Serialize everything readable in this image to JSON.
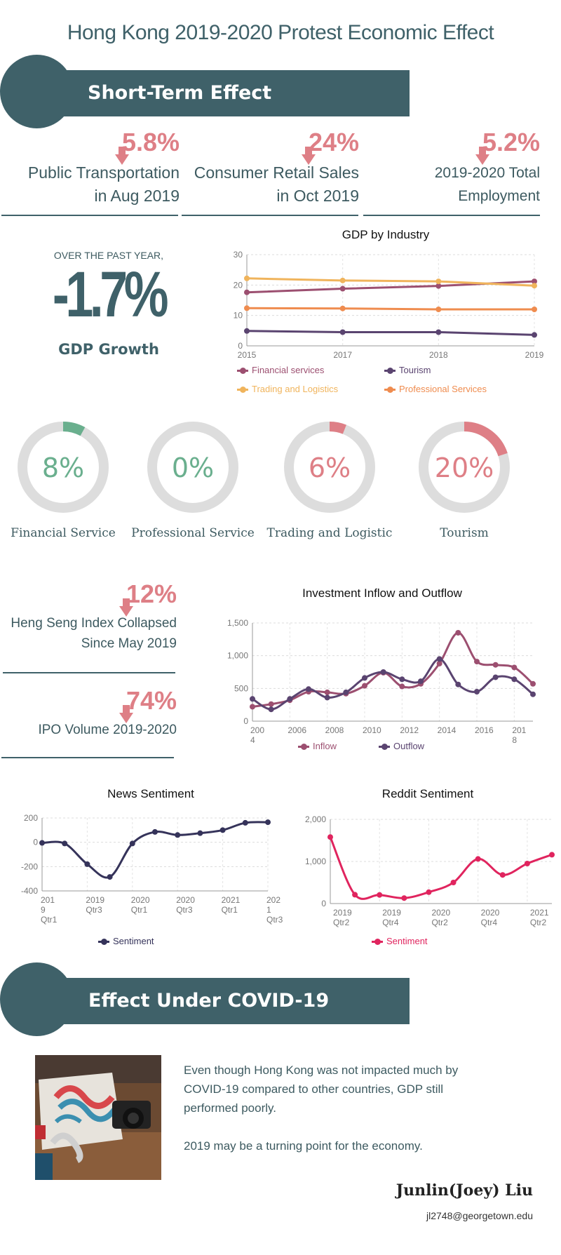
{
  "title": "Hong Kong 2019-2020 Protest Economic Effect",
  "banner_short": "Short-Term Effect",
  "banner_covid": "Effect Under COVID-19",
  "top_stats": [
    {
      "pct": "5.8%",
      "line1": "Public Transportation",
      "line2": "in Aug 2019"
    },
    {
      "pct": "24%",
      "line1": "Consumer Retail Sales",
      "line2": "in Oct 2019"
    },
    {
      "pct": "5.2%",
      "line1": "2019-2020 Total",
      "line2": "Employment"
    }
  ],
  "gdp_block": {
    "over": "OVER THE PAST YEAR,",
    "value": "-1.7%",
    "label": "GDP Growth"
  },
  "donuts": [
    {
      "value": 8,
      "text": "8%",
      "label": "Financial Service",
      "color": "#6aaf8e"
    },
    {
      "value": 0,
      "text": "0%",
      "label": "Professional Service",
      "color": "#6aaf8e"
    },
    {
      "value": 6,
      "text": "6%",
      "label": "Trading and Logistic",
      "color": "#de7f86"
    },
    {
      "value": 20,
      "text": "20%",
      "label": "Tourism",
      "color": "#de7f86"
    }
  ],
  "mid_stats": [
    {
      "pct": "12%",
      "line1": "Heng Seng Index Collapsed",
      "line2": "Since May 2019"
    },
    {
      "pct": "74%",
      "line1": "IPO Volume 2019-2020",
      "line2": ""
    }
  ],
  "covid_text": {
    "p1": "Even though Hong Kong was not impacted much by COVID-19 compared to other countries, GDP still performed poorly.",
    "p2": "2019 may be a turning point for the economy."
  },
  "author": {
    "name": "Junlin(Joey) Liu",
    "email": "jl2748@georgetown.edu"
  },
  "colors": {
    "accent": "#3f6169",
    "negative": "#de7f86",
    "positive": "#6aaf8e",
    "ring": "#dddddd"
  },
  "chart_data": [
    {
      "type": "line",
      "title": "GDP by Industry",
      "categories": [
        "2015",
        "2017",
        "2018",
        "2019"
      ],
      "ylim": [
        0,
        30
      ],
      "yticks": [
        "0",
        "10",
        "20",
        "30"
      ],
      "grid": true,
      "legend": "bottom",
      "series": [
        {
          "name": "Financial services",
          "color": "#9c4f70",
          "values": [
            17.6,
            18.8,
            19.7,
            21.2
          ]
        },
        {
          "name": "Tourism",
          "color": "#5a4470",
          "values": [
            4.9,
            4.5,
            4.5,
            3.6
          ]
        },
        {
          "name": "Trading and Logistics",
          "color": "#f0b45c",
          "values": [
            22.2,
            21.5,
            21.2,
            19.8
          ]
        },
        {
          "name": "Professional Services",
          "color": "#ef8c4f",
          "values": [
            12.4,
            12.3,
            12.0,
            12.0
          ]
        }
      ]
    },
    {
      "type": "line",
      "title": "Investment Inflow and Outflow",
      "x": [
        2004,
        2005,
        2006,
        2007,
        2008,
        2009,
        2010,
        2011,
        2012,
        2013,
        2014,
        2015,
        2016,
        2017,
        2018,
        2019
      ],
      "xticks": [
        "200\n4",
        "2006",
        "2008",
        "2010",
        "2012",
        "2014",
        "2016",
        "201\n8"
      ],
      "ylim": [
        0,
        1500
      ],
      "yticks": [
        "0",
        "500",
        "1,000",
        "1,500"
      ],
      "grid": true,
      "legend": "bottom",
      "series": [
        {
          "name": "Inflow",
          "color": "#9c4f70",
          "values": [
            220,
            260,
            320,
            450,
            440,
            420,
            540,
            740,
            530,
            570,
            880,
            1350,
            910,
            860,
            820,
            570
          ]
        },
        {
          "name": "Outflow",
          "color": "#5a4470",
          "values": [
            340,
            180,
            340,
            490,
            360,
            440,
            660,
            750,
            640,
            610,
            950,
            560,
            450,
            670,
            640,
            410
          ]
        }
      ]
    },
    {
      "type": "line",
      "title": "News Sentiment",
      "x": [
        "2019 Qtr1",
        "2019 Qtr2",
        "2019 Qtr3",
        "2019 Qtr4",
        "2020 Qtr1",
        "2020 Qtr2",
        "2020 Qtr3",
        "2020 Qtr4",
        "2021 Qtr1",
        "2021 Qtr2",
        "2021 Qtr3"
      ],
      "xticks": [
        [
          "201",
          "9",
          "Qtr1"
        ],
        [
          "2019",
          "Qtr3"
        ],
        [
          "2020",
          "Qtr1"
        ],
        [
          "2020",
          "Qtr3"
        ],
        [
          "2021",
          "Qtr1"
        ],
        [
          "202",
          "1",
          "Qtr3"
        ]
      ],
      "ylim": [
        -400,
        200
      ],
      "yticks": [
        "-400",
        "-200",
        "0",
        "200"
      ],
      "grid": true,
      "legend": "bottom",
      "series": [
        {
          "name": "Sentiment",
          "color": "#35335a",
          "values": [
            -5,
            -10,
            -180,
            -285,
            -10,
            85,
            60,
            75,
            100,
            160,
            165
          ]
        }
      ]
    },
    {
      "type": "line",
      "title": "Reddit Sentiment",
      "x": [
        "2019 Qtr2",
        "2019 Qtr3",
        "2019 Qtr4",
        "2020 Qtr1",
        "2020 Qtr2",
        "2020 Qtr3",
        "2020 Qtr4",
        "2021 Qtr1",
        "2021 Qtr2",
        "2021 Qtr3"
      ],
      "xticks": [
        [
          "2019",
          "Qtr2"
        ],
        [
          "2019",
          "Qtr4"
        ],
        [
          "2020",
          "Qtr2"
        ],
        [
          "2020",
          "Qtr4"
        ],
        [
          "2021",
          "Qtr2"
        ]
      ],
      "ylim": [
        0,
        2000
      ],
      "yticks": [
        "0",
        "1,000",
        "2,000"
      ],
      "grid": true,
      "legend": "bottom",
      "series": [
        {
          "name": "Sentiment",
          "color": "#e0245e",
          "values": [
            1580,
            210,
            205,
            130,
            270,
            500,
            1060,
            680,
            950,
            1160
          ]
        }
      ]
    }
  ]
}
